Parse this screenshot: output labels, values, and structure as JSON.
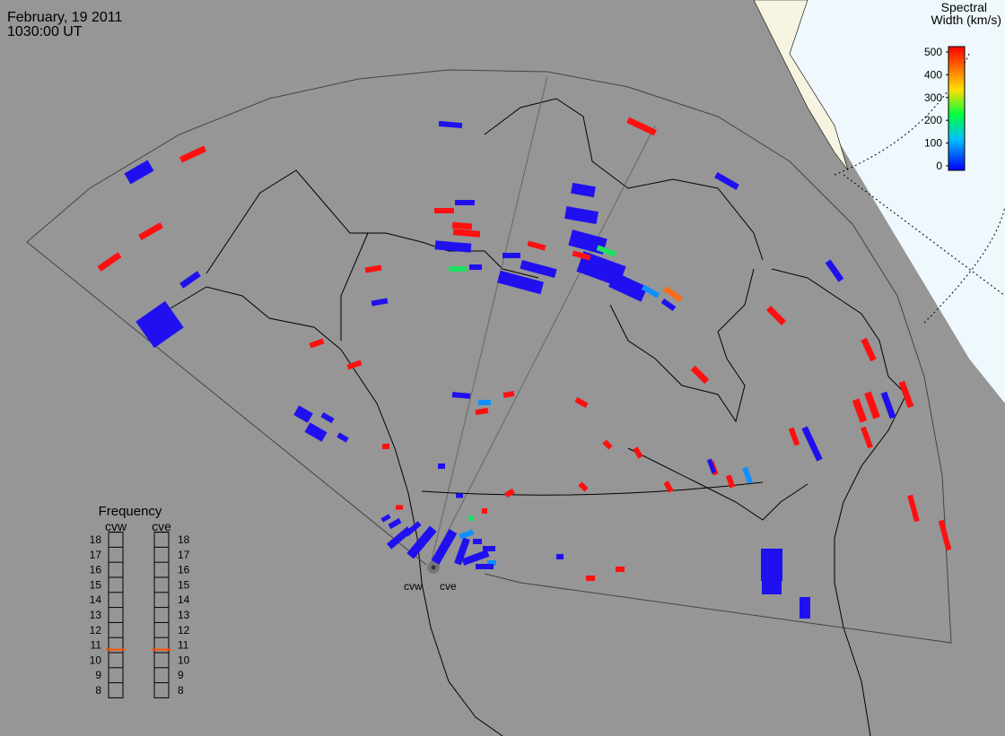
{
  "header": {
    "date": "February, 19 2011",
    "time": "1030:00 UT"
  },
  "colorbar": {
    "title_lines": [
      "Spectral",
      "Width (km/s)"
    ],
    "range": [
      0,
      500
    ],
    "ticks": [
      0,
      100,
      200,
      300,
      400,
      500
    ]
  },
  "frequency": {
    "title": "Frequency",
    "range": [
      8,
      18
    ],
    "ticks": [
      18,
      17,
      16,
      15,
      14,
      13,
      12,
      11,
      10,
      9,
      8
    ],
    "radars": [
      {
        "name": "cvw",
        "value": 10.7
      },
      {
        "name": "cve",
        "value": 10.7
      }
    ]
  },
  "radar_sites": [
    "cvw",
    "cve"
  ]
}
